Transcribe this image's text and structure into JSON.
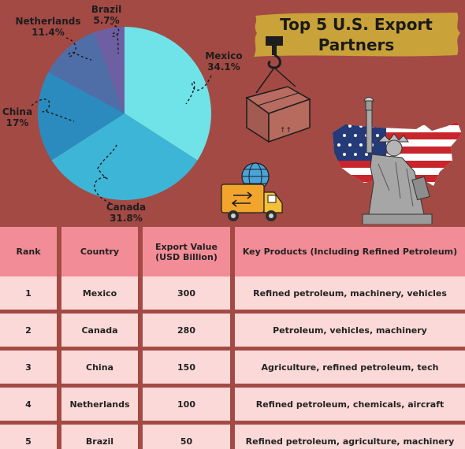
{
  "title": "Top 5 U.S. Export Partners",
  "colors": {
    "background": "#a34a45",
    "banner": "#c9a23a",
    "header_cell": "#f28c96",
    "row_cell": "#fbd9d8",
    "mexico": "#6fe3e8",
    "canada": "#3db5d6",
    "china": "#2b8bbf",
    "netherlands": "#4f6ea8",
    "brazil": "#6e5fa2"
  },
  "chart_data": {
    "type": "pie",
    "slices": [
      {
        "label": "Mexico",
        "value": 34.1,
        "display": "34.1%"
      },
      {
        "label": "Canada",
        "value": 31.8,
        "display": "31.8%"
      },
      {
        "label": "China",
        "value": 17,
        "display": "17%"
      },
      {
        "label": "Netherlands",
        "value": 11.4,
        "display": "11.4%"
      },
      {
        "label": "Brazil",
        "value": 5.7,
        "display": "5.7%"
      }
    ]
  },
  "table": {
    "headers": [
      "Rank",
      "Country",
      "Export Value (USD Billion)",
      "Key Products (Including Refined Petroleum)"
    ],
    "rows": [
      [
        "1",
        "Mexico",
        "300",
        "Refined petroleum, machinery, vehicles"
      ],
      [
        "2",
        "Canada",
        "280",
        "Petroleum, vehicles, machinery"
      ],
      [
        "3",
        "China",
        "150",
        "Agriculture, refined petroleum, tech"
      ],
      [
        "4",
        "Netherlands",
        "100",
        "Refined petroleum, chemicals, aircraft"
      ],
      [
        "5",
        "Brazil",
        "50",
        "Refined petroleum, agriculture, machinery"
      ]
    ]
  },
  "illustrations": [
    "crane-hook-box-icon",
    "us-flag-map-icon",
    "statue-of-liberty-icon",
    "delivery-truck-globe-icon"
  ]
}
